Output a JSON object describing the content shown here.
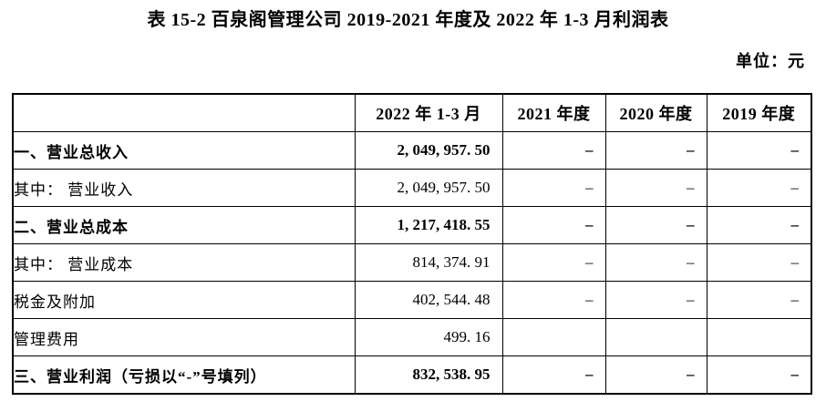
{
  "page": {
    "title": "表 15-2 百泉阁管理公司 2019-2021 年度及 2022 年 1-3 月利润表",
    "unit_label": "单位：元"
  },
  "table": {
    "headers": [
      "",
      "2022 年 1-3 月",
      "2021 年度",
      "2020 年度",
      "2019 年度"
    ],
    "rows": [
      {
        "label": "一、营业总收入",
        "values": [
          "2, 049, 957. 50",
          "–",
          "–",
          "–"
        ]
      },
      {
        "label": "其中： 营业收入",
        "values": [
          "2, 049, 957. 50",
          "–",
          "–",
          "–"
        ]
      },
      {
        "label": "二、营业总成本",
        "values": [
          "1, 217, 418. 55",
          "–",
          "–",
          "–"
        ]
      },
      {
        "label": "其中： 营业成本",
        "values": [
          "814, 374. 91",
          "–",
          "–",
          "–"
        ]
      },
      {
        "label": "税金及附加",
        "values": [
          "402, 544. 48",
          "–",
          "–",
          "–"
        ]
      },
      {
        "label": "管理费用",
        "values": [
          "499. 16",
          "",
          "",
          ""
        ]
      },
      {
        "label": "三、营业利润（亏损以“-”号填列）",
        "values": [
          "832, 538. 95",
          "–",
          "–",
          "–"
        ]
      }
    ]
  }
}
